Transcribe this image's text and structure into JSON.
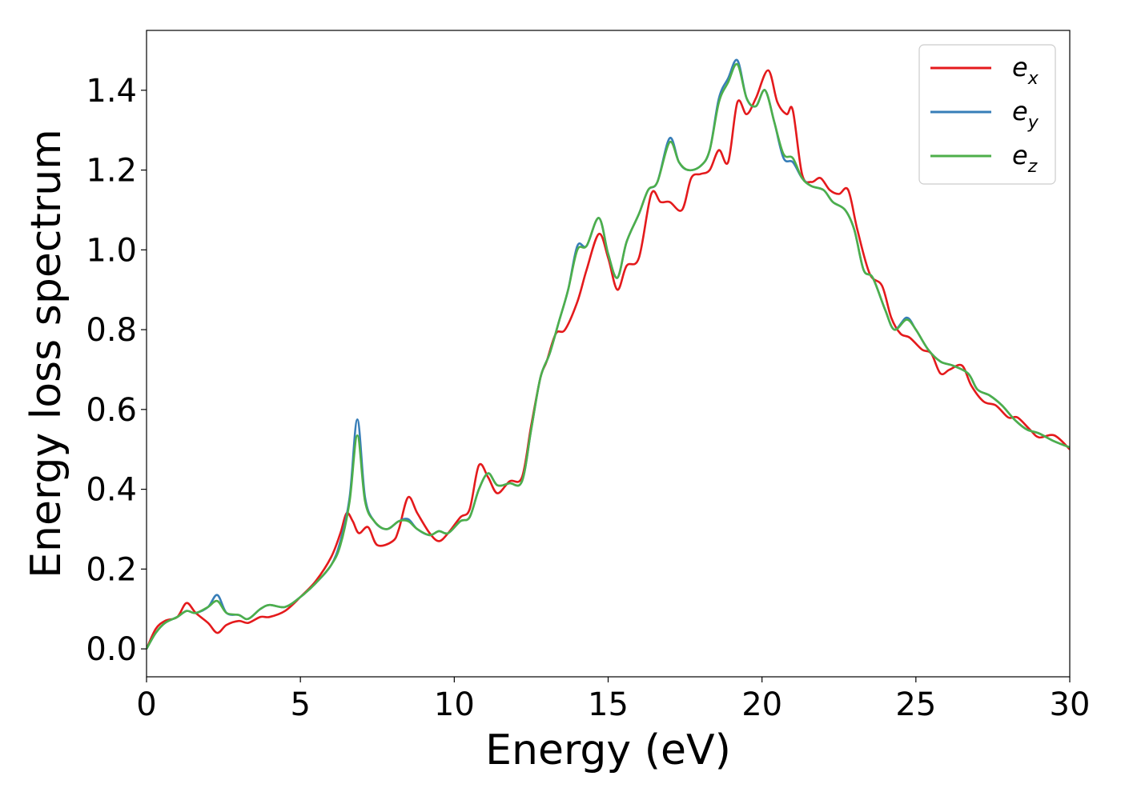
{
  "chart_data": {
    "type": "line",
    "xlabel": "Energy (eV)",
    "ylabel": "Energy loss spectrum",
    "xlim": [
      0,
      30
    ],
    "ylim": [
      -0.07,
      1.55
    ],
    "xticks": [
      0,
      5,
      10,
      15,
      20,
      25,
      30
    ],
    "xtick_labels": [
      "0",
      "5",
      "10",
      "15",
      "20",
      "25",
      "30"
    ],
    "yticks": [
      0.0,
      0.2,
      0.4,
      0.6,
      0.8,
      1.0,
      1.2,
      1.4
    ],
    "ytick_labels": [
      "0.0",
      "0.2",
      "0.4",
      "0.6",
      "0.8",
      "1.0",
      "1.2",
      "1.4"
    ],
    "grid": false,
    "legend_position": "top-right",
    "series": [
      {
        "name": "e",
        "subscript": "x",
        "color": "#e41a1c",
        "points": [
          [
            0,
            0.0
          ],
          [
            0.3,
            0.05
          ],
          [
            0.6,
            0.07
          ],
          [
            1.0,
            0.08
          ],
          [
            1.3,
            0.115
          ],
          [
            1.6,
            0.09
          ],
          [
            2.0,
            0.065
          ],
          [
            2.3,
            0.04
          ],
          [
            2.6,
            0.06
          ],
          [
            3.0,
            0.07
          ],
          [
            3.3,
            0.065
          ],
          [
            3.7,
            0.08
          ],
          [
            4.0,
            0.08
          ],
          [
            4.5,
            0.095
          ],
          [
            5.0,
            0.13
          ],
          [
            5.5,
            0.17
          ],
          [
            6.0,
            0.23
          ],
          [
            6.3,
            0.29
          ],
          [
            6.5,
            0.34
          ],
          [
            6.7,
            0.32
          ],
          [
            6.9,
            0.29
          ],
          [
            7.2,
            0.305
          ],
          [
            7.5,
            0.26
          ],
          [
            8.0,
            0.27
          ],
          [
            8.2,
            0.3
          ],
          [
            8.5,
            0.38
          ],
          [
            8.8,
            0.34
          ],
          [
            9.2,
            0.29
          ],
          [
            9.5,
            0.27
          ],
          [
            9.8,
            0.29
          ],
          [
            10.2,
            0.33
          ],
          [
            10.5,
            0.35
          ],
          [
            10.8,
            0.46
          ],
          [
            11.1,
            0.43
          ],
          [
            11.4,
            0.39
          ],
          [
            11.8,
            0.42
          ],
          [
            12.2,
            0.43
          ],
          [
            12.5,
            0.56
          ],
          [
            12.8,
            0.68
          ],
          [
            13.0,
            0.72
          ],
          [
            13.3,
            0.79
          ],
          [
            13.6,
            0.8
          ],
          [
            14.0,
            0.87
          ],
          [
            14.3,
            0.95
          ],
          [
            14.7,
            1.04
          ],
          [
            15.0,
            0.98
          ],
          [
            15.3,
            0.9
          ],
          [
            15.6,
            0.96
          ],
          [
            16.0,
            0.98
          ],
          [
            16.4,
            1.14
          ],
          [
            16.7,
            1.12
          ],
          [
            17.0,
            1.12
          ],
          [
            17.4,
            1.1
          ],
          [
            17.7,
            1.18
          ],
          [
            18.0,
            1.19
          ],
          [
            18.3,
            1.2
          ],
          [
            18.6,
            1.25
          ],
          [
            18.9,
            1.22
          ],
          [
            19.2,
            1.37
          ],
          [
            19.5,
            1.34
          ],
          [
            19.8,
            1.38
          ],
          [
            20.2,
            1.45
          ],
          [
            20.5,
            1.37
          ],
          [
            20.8,
            1.34
          ],
          [
            21.0,
            1.35
          ],
          [
            21.3,
            1.19
          ],
          [
            21.6,
            1.17
          ],
          [
            21.9,
            1.18
          ],
          [
            22.2,
            1.15
          ],
          [
            22.5,
            1.14
          ],
          [
            22.8,
            1.15
          ],
          [
            23.1,
            1.05
          ],
          [
            23.5,
            0.94
          ],
          [
            23.9,
            0.91
          ],
          [
            24.2,
            0.83
          ],
          [
            24.5,
            0.79
          ],
          [
            24.8,
            0.78
          ],
          [
            25.2,
            0.75
          ],
          [
            25.5,
            0.74
          ],
          [
            25.8,
            0.69
          ],
          [
            26.1,
            0.7
          ],
          [
            26.5,
            0.71
          ],
          [
            26.8,
            0.66
          ],
          [
            27.2,
            0.62
          ],
          [
            27.6,
            0.61
          ],
          [
            28.0,
            0.58
          ],
          [
            28.3,
            0.58
          ],
          [
            28.7,
            0.55
          ],
          [
            29.0,
            0.53
          ],
          [
            29.5,
            0.535
          ],
          [
            30.0,
            0.5
          ]
        ]
      },
      {
        "name": "e",
        "subscript": "y",
        "color": "#377eb8",
        "points": [
          [
            0,
            0.0
          ],
          [
            0.3,
            0.04
          ],
          [
            0.6,
            0.065
          ],
          [
            1.0,
            0.08
          ],
          [
            1.3,
            0.095
          ],
          [
            1.6,
            0.09
          ],
          [
            2.0,
            0.105
          ],
          [
            2.3,
            0.135
          ],
          [
            2.6,
            0.09
          ],
          [
            3.0,
            0.085
          ],
          [
            3.3,
            0.075
          ],
          [
            3.7,
            0.1
          ],
          [
            4.0,
            0.11
          ],
          [
            4.5,
            0.105
          ],
          [
            5.0,
            0.13
          ],
          [
            5.5,
            0.165
          ],
          [
            6.0,
            0.21
          ],
          [
            6.3,
            0.27
          ],
          [
            6.6,
            0.38
          ],
          [
            6.85,
            0.575
          ],
          [
            7.1,
            0.38
          ],
          [
            7.4,
            0.32
          ],
          [
            7.8,
            0.3
          ],
          [
            8.2,
            0.32
          ],
          [
            8.5,
            0.325
          ],
          [
            8.8,
            0.3
          ],
          [
            9.2,
            0.285
          ],
          [
            9.5,
            0.295
          ],
          [
            9.8,
            0.29
          ],
          [
            10.2,
            0.32
          ],
          [
            10.5,
            0.33
          ],
          [
            10.8,
            0.4
          ],
          [
            11.1,
            0.44
          ],
          [
            11.4,
            0.41
          ],
          [
            11.8,
            0.415
          ],
          [
            12.2,
            0.42
          ],
          [
            12.5,
            0.55
          ],
          [
            12.8,
            0.68
          ],
          [
            13.1,
            0.74
          ],
          [
            13.4,
            0.82
          ],
          [
            13.7,
            0.9
          ],
          [
            14.0,
            1.01
          ],
          [
            14.3,
            1.01
          ],
          [
            14.7,
            1.08
          ],
          [
            15.0,
            0.99
          ],
          [
            15.3,
            0.93
          ],
          [
            15.6,
            1.02
          ],
          [
            16.0,
            1.09
          ],
          [
            16.3,
            1.15
          ],
          [
            16.6,
            1.17
          ],
          [
            17.0,
            1.28
          ],
          [
            17.3,
            1.22
          ],
          [
            17.6,
            1.2
          ],
          [
            18.0,
            1.21
          ],
          [
            18.3,
            1.25
          ],
          [
            18.6,
            1.38
          ],
          [
            18.9,
            1.43
          ],
          [
            19.2,
            1.475
          ],
          [
            19.5,
            1.38
          ],
          [
            19.8,
            1.36
          ],
          [
            20.1,
            1.4
          ],
          [
            20.4,
            1.32
          ],
          [
            20.7,
            1.23
          ],
          [
            21.0,
            1.22
          ],
          [
            21.3,
            1.18
          ],
          [
            21.6,
            1.16
          ],
          [
            22.0,
            1.15
          ],
          [
            22.3,
            1.12
          ],
          [
            22.7,
            1.1
          ],
          [
            23.0,
            1.05
          ],
          [
            23.3,
            0.95
          ],
          [
            23.6,
            0.93
          ],
          [
            24.0,
            0.85
          ],
          [
            24.3,
            0.8
          ],
          [
            24.7,
            0.83
          ],
          [
            25.0,
            0.8
          ],
          [
            25.4,
            0.75
          ],
          [
            25.8,
            0.72
          ],
          [
            26.2,
            0.71
          ],
          [
            26.7,
            0.69
          ],
          [
            27.0,
            0.65
          ],
          [
            27.4,
            0.635
          ],
          [
            27.8,
            0.61
          ],
          [
            28.2,
            0.575
          ],
          [
            28.6,
            0.55
          ],
          [
            29.0,
            0.54
          ],
          [
            29.5,
            0.52
          ],
          [
            30.0,
            0.505
          ]
        ]
      },
      {
        "name": "e",
        "subscript": "z",
        "color": "#4daf4a",
        "points": [
          [
            0,
            0.0
          ],
          [
            0.3,
            0.04
          ],
          [
            0.6,
            0.065
          ],
          [
            1.0,
            0.08
          ],
          [
            1.3,
            0.095
          ],
          [
            1.6,
            0.09
          ],
          [
            2.0,
            0.105
          ],
          [
            2.3,
            0.12
          ],
          [
            2.6,
            0.09
          ],
          [
            3.0,
            0.085
          ],
          [
            3.3,
            0.075
          ],
          [
            3.7,
            0.1
          ],
          [
            4.0,
            0.11
          ],
          [
            4.5,
            0.105
          ],
          [
            5.0,
            0.13
          ],
          [
            5.5,
            0.165
          ],
          [
            6.0,
            0.21
          ],
          [
            6.3,
            0.26
          ],
          [
            6.6,
            0.37
          ],
          [
            6.85,
            0.535
          ],
          [
            7.1,
            0.37
          ],
          [
            7.4,
            0.32
          ],
          [
            7.8,
            0.3
          ],
          [
            8.2,
            0.32
          ],
          [
            8.5,
            0.32
          ],
          [
            8.8,
            0.3
          ],
          [
            9.2,
            0.285
          ],
          [
            9.5,
            0.295
          ],
          [
            9.8,
            0.29
          ],
          [
            10.2,
            0.32
          ],
          [
            10.5,
            0.33
          ],
          [
            10.8,
            0.4
          ],
          [
            11.1,
            0.44
          ],
          [
            11.4,
            0.41
          ],
          [
            11.8,
            0.415
          ],
          [
            12.2,
            0.42
          ],
          [
            12.5,
            0.55
          ],
          [
            12.8,
            0.68
          ],
          [
            13.1,
            0.74
          ],
          [
            13.4,
            0.82
          ],
          [
            13.7,
            0.9
          ],
          [
            14.0,
            1.0
          ],
          [
            14.3,
            1.01
          ],
          [
            14.7,
            1.08
          ],
          [
            15.0,
            0.99
          ],
          [
            15.3,
            0.93
          ],
          [
            15.6,
            1.02
          ],
          [
            16.0,
            1.09
          ],
          [
            16.3,
            1.15
          ],
          [
            16.6,
            1.17
          ],
          [
            17.0,
            1.27
          ],
          [
            17.3,
            1.22
          ],
          [
            17.6,
            1.2
          ],
          [
            18.0,
            1.21
          ],
          [
            18.3,
            1.25
          ],
          [
            18.6,
            1.37
          ],
          [
            18.9,
            1.42
          ],
          [
            19.2,
            1.465
          ],
          [
            19.5,
            1.38
          ],
          [
            19.8,
            1.36
          ],
          [
            20.1,
            1.4
          ],
          [
            20.4,
            1.32
          ],
          [
            20.7,
            1.24
          ],
          [
            21.0,
            1.23
          ],
          [
            21.3,
            1.18
          ],
          [
            21.6,
            1.16
          ],
          [
            22.0,
            1.15
          ],
          [
            22.3,
            1.12
          ],
          [
            22.7,
            1.1
          ],
          [
            23.0,
            1.05
          ],
          [
            23.3,
            0.95
          ],
          [
            23.6,
            0.93
          ],
          [
            24.0,
            0.85
          ],
          [
            24.3,
            0.8
          ],
          [
            24.7,
            0.825
          ],
          [
            25.0,
            0.8
          ],
          [
            25.4,
            0.75
          ],
          [
            25.8,
            0.72
          ],
          [
            26.2,
            0.71
          ],
          [
            26.7,
            0.69
          ],
          [
            27.0,
            0.65
          ],
          [
            27.4,
            0.635
          ],
          [
            27.8,
            0.61
          ],
          [
            28.2,
            0.575
          ],
          [
            28.6,
            0.55
          ],
          [
            29.0,
            0.54
          ],
          [
            29.5,
            0.52
          ],
          [
            30.0,
            0.505
          ]
        ]
      }
    ]
  }
}
